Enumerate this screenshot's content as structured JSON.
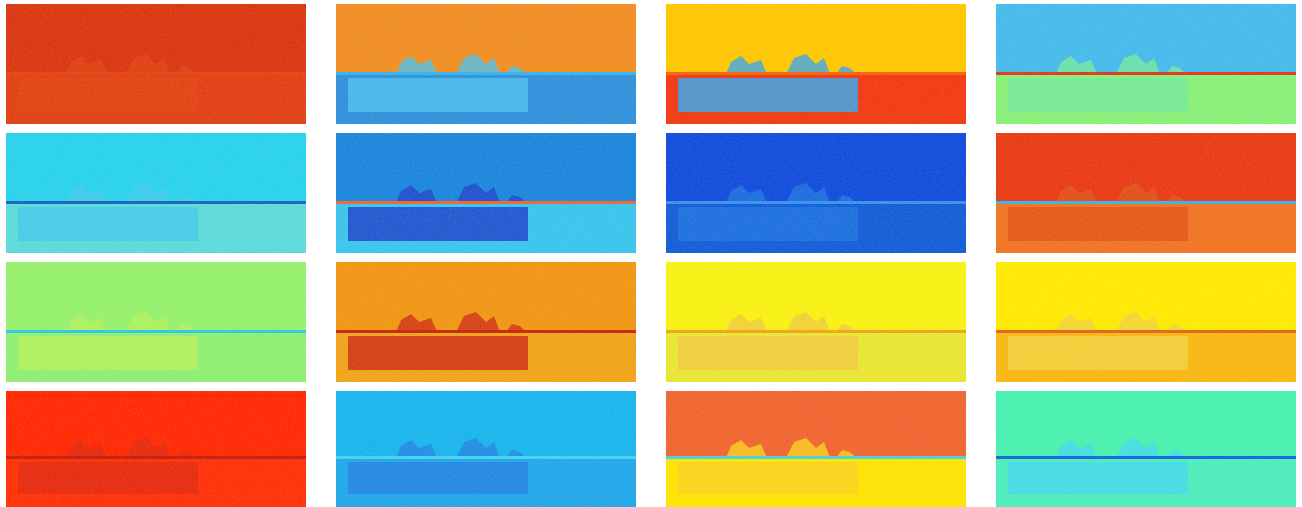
{
  "panels": [
    {
      "top": "#d8300f",
      "line": "#e04010",
      "bottom": "#e03a12",
      "box": "#e23f14"
    },
    {
      "top": "#f08a22",
      "line": "#30b0f0",
      "bottom": "#2a8ce0",
      "box": "#48bdf2"
    },
    {
      "top": "#ffc400",
      "line": "#f06010",
      "bottom": "#f03412",
      "box": "#34a2f0"
    },
    {
      "top": "#40b8f0",
      "line": "#e03020",
      "bottom": "#84f07a",
      "box": "#70e8a0"
    },
    {
      "top": "#22d0f2",
      "line": "#1060c0",
      "bottom": "#58d8e0",
      "box": "#40c8f0"
    },
    {
      "top": "#1482e2",
      "line": "#f06030",
      "bottom": "#34c2f2",
      "box": "#1a40d0"
    },
    {
      "top": "#0a46e0",
      "line": "#3090f0",
      "bottom": "#0c58dc",
      "box": "#1a70e8"
    },
    {
      "top": "#e83414",
      "line": "#30b0f0",
      "bottom": "#f07022",
      "box": "#e05018"
    },
    {
      "top": "#92f06e",
      "line": "#30c0f0",
      "bottom": "#8aee74",
      "box": "#b0f060"
    },
    {
      "top": "#f09212",
      "line": "#c02010",
      "bottom": "#f0a018",
      "box": "#d02818"
    },
    {
      "top": "#f8f012",
      "line": "#f0a020",
      "bottom": "#e8e432",
      "box": "#f0c840"
    },
    {
      "top": "#ffe802",
      "line": "#e06020",
      "bottom": "#f8b412",
      "box": "#f0d040"
    },
    {
      "top": "#ff2202",
      "line": "#c01810",
      "bottom": "#ff2a06",
      "box": "#e02410"
    },
    {
      "top": "#12b2f2",
      "line": "#40d0f0",
      "bottom": "#1aa4f0",
      "box": "#2080e8"
    },
    {
      "top": "#f06030",
      "line": "#40d0e0",
      "bottom": "#ffe202",
      "box": "#f8d020"
    },
    {
      "top": "#42f0b4",
      "line": "#1060e0",
      "bottom": "#48ecc0",
      "box": "#40d8f0"
    }
  ]
}
